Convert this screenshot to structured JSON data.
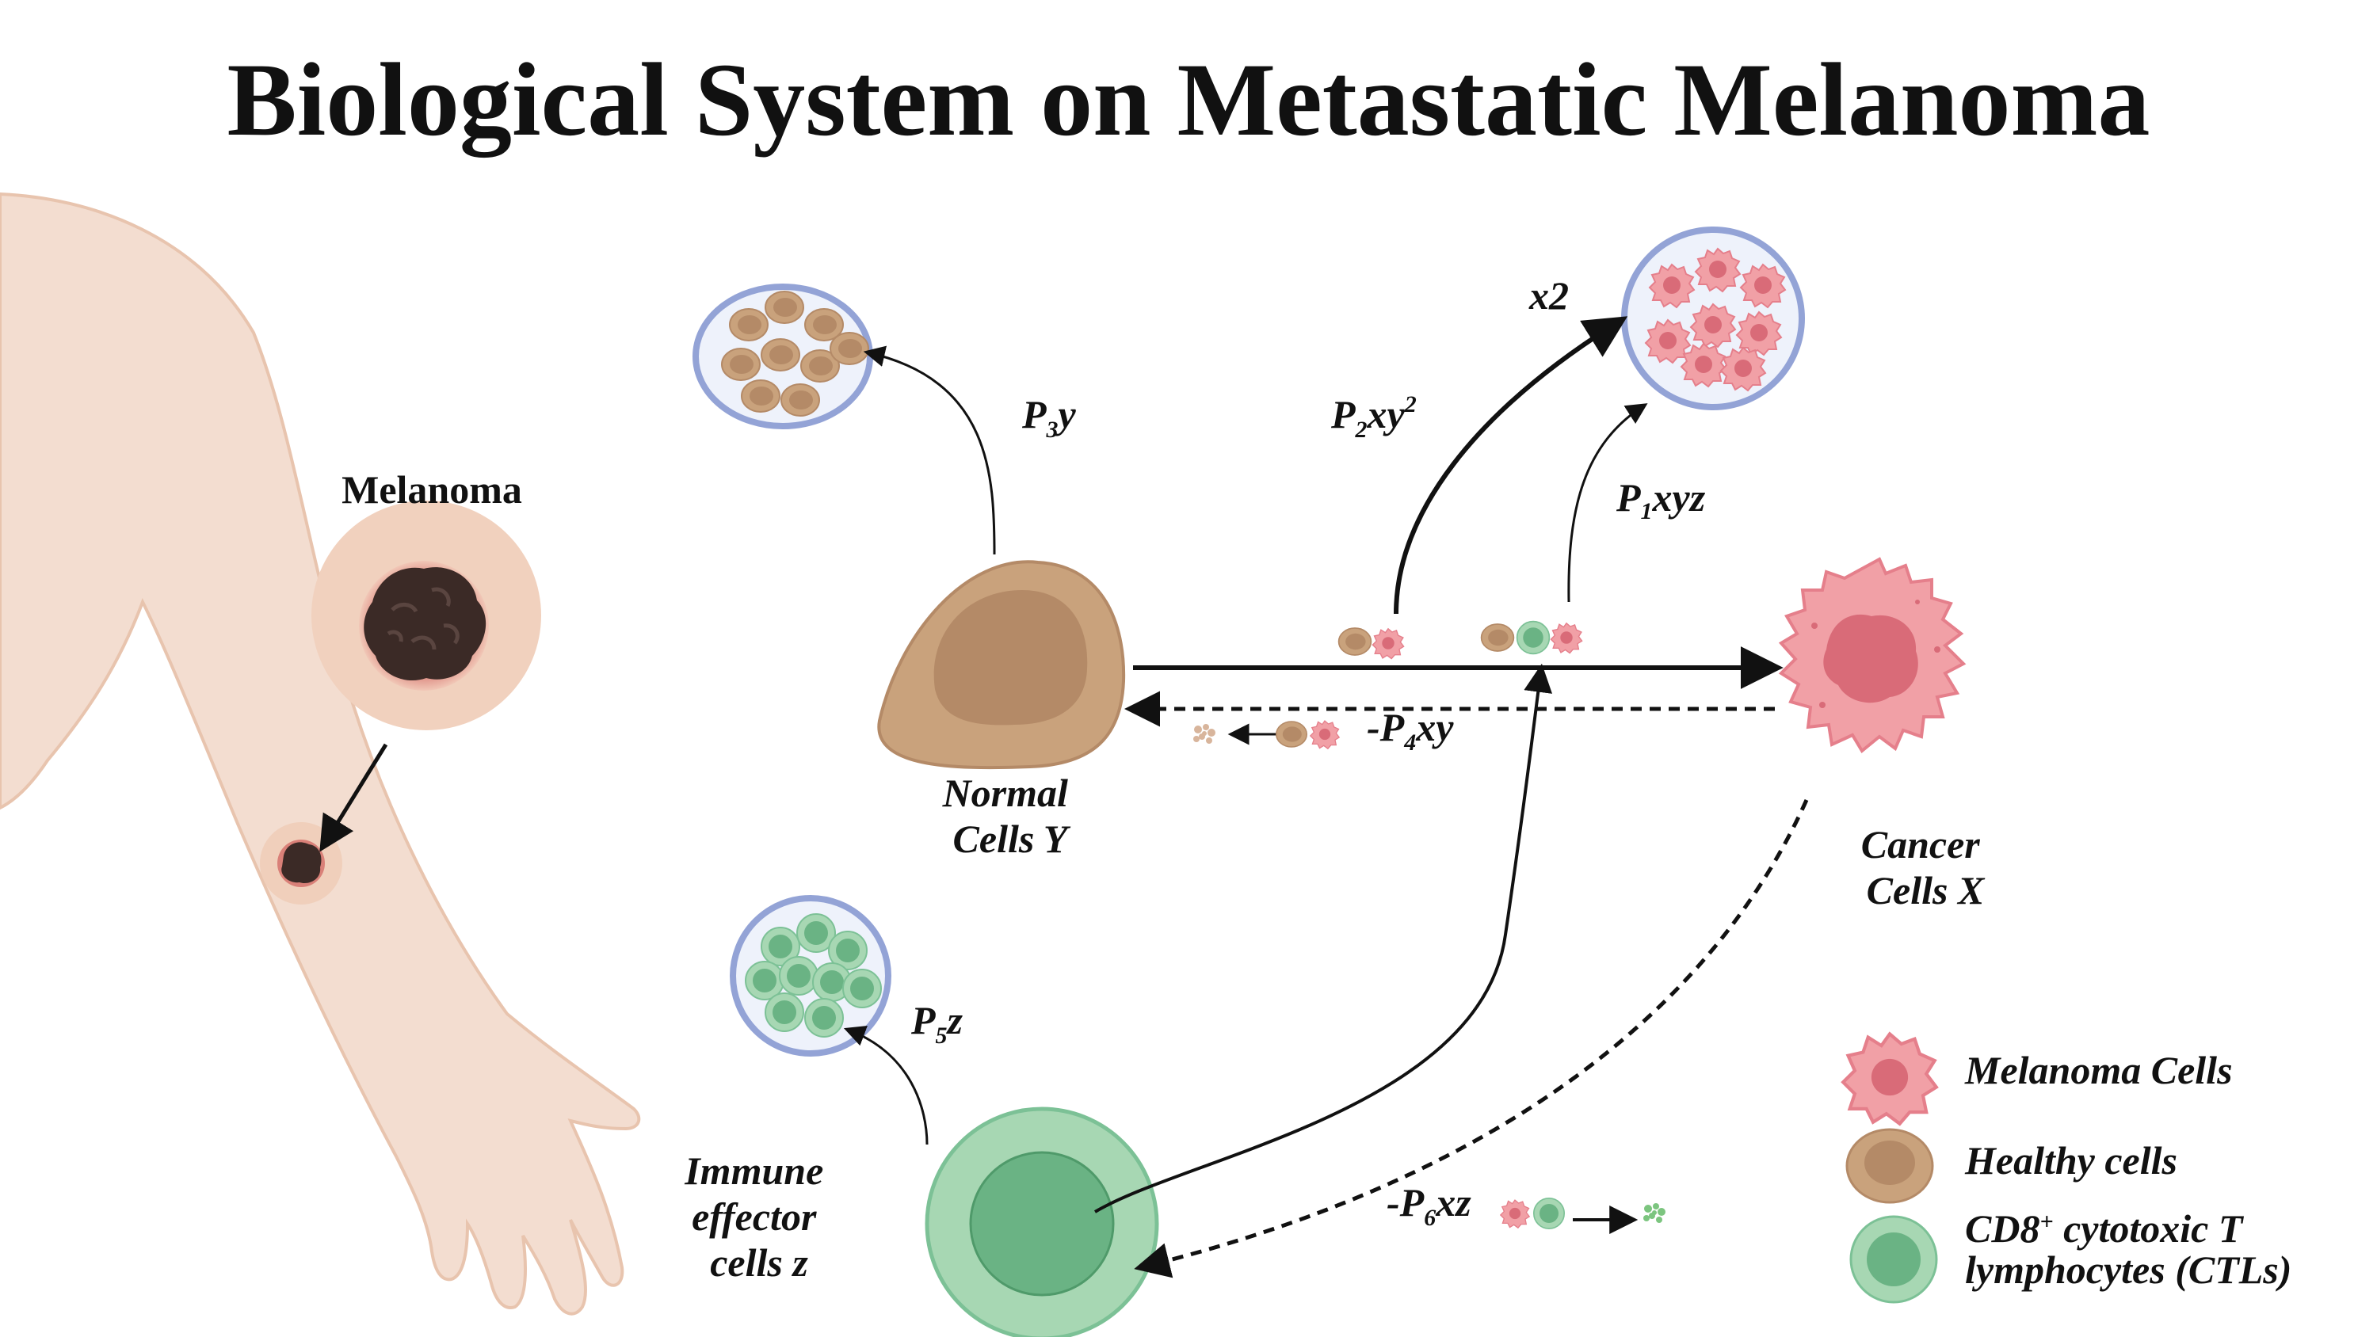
{
  "title": "Biological System on Metastatic Melanoma",
  "labels": {
    "melanoma": "Melanoma",
    "normal_cells_line1": "Normal",
    "normal_cells_line2": "Cells Y",
    "cancer_cells_line1": "Cancer",
    "cancer_cells_line2": "Cells X",
    "immune_line1": "Immune",
    "immune_line2": "effector",
    "immune_line3": "cells z",
    "x2": "x2"
  },
  "terms": {
    "p3y": {
      "prefix": "P",
      "sub": "3",
      "rest": "y"
    },
    "p2xy2": {
      "prefix": "P",
      "sub": "2",
      "rest": "xy",
      "sup": "2"
    },
    "p1xyz": {
      "prefix": "P",
      "sub": "1",
      "rest": "xyz"
    },
    "p4xy": {
      "prefix": "-P",
      "sub": "4",
      "rest": "xy"
    },
    "p5z": {
      "prefix": "P",
      "sub": "5",
      "rest": "z"
    },
    "p6xz": {
      "prefix": "-P",
      "sub": "6",
      "rest": "xz"
    }
  },
  "legend": {
    "melanoma_cells": "Melanoma Cells",
    "healthy_cells": "Healthy cells",
    "ctl_line1_pre": "CD8",
    "ctl_line1_sup": "+",
    "ctl_line1_post": " cytotoxic T",
    "ctl_line2": "lymphocytes (CTLs)"
  },
  "colors": {
    "skin": "#f3ddd0",
    "skin_edge": "#e8c4ae",
    "healthy": "#c9a27c",
    "healthy_nucleus": "#b48a67",
    "melanoma": "#f1a0a6",
    "melanoma_nucleus": "#d96b78",
    "ctl": "#a7d7b3",
    "ctl_nucleus": "#6ab384",
    "well_border": "#93a3d6",
    "lesion": "#3b2a26"
  }
}
